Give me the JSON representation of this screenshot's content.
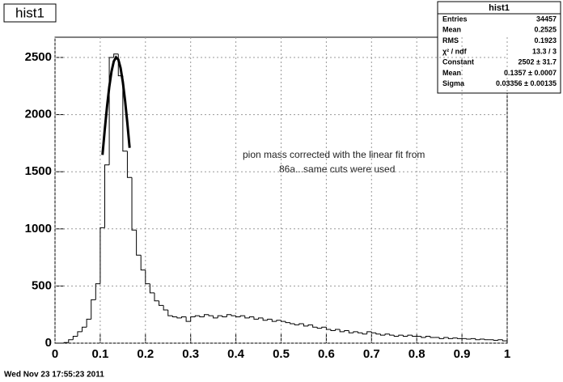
{
  "chart_data": {
    "type": "histogram",
    "title": "hist1",
    "bins": [
      0,
      0.01,
      0.02,
      0.03,
      0.04,
      0.05,
      0.06,
      0.07,
      0.08,
      0.09,
      0.1,
      0.11,
      0.12,
      0.13,
      0.14,
      0.15,
      0.16,
      0.17,
      0.18,
      0.19,
      0.2,
      0.21,
      0.22,
      0.23,
      0.24,
      0.25,
      0.26,
      0.27,
      0.28,
      0.29,
      0.3,
      0.31,
      0.32,
      0.33,
      0.34,
      0.35,
      0.36,
      0.37,
      0.38,
      0.39,
      0.4,
      0.41,
      0.42,
      0.43,
      0.44,
      0.45,
      0.46,
      0.47,
      0.48,
      0.49,
      0.5,
      0.51,
      0.52,
      0.53,
      0.54,
      0.55,
      0.56,
      0.57,
      0.58,
      0.59,
      0.6,
      0.61,
      0.62,
      0.63,
      0.64,
      0.65,
      0.66,
      0.67,
      0.68,
      0.69,
      0.7,
      0.71,
      0.72,
      0.73,
      0.74,
      0.75,
      0.76,
      0.77,
      0.78,
      0.79,
      0.8,
      0.81,
      0.82,
      0.83,
      0.84,
      0.85,
      0.86,
      0.87,
      0.88,
      0.89,
      0.9,
      0.91,
      0.92,
      0.93,
      0.94,
      0.95,
      0.96,
      0.97,
      0.98,
      0.99,
      1
    ],
    "values": [
      0,
      0,
      5,
      30,
      60,
      100,
      140,
      210,
      380,
      520,
      1010,
      1560,
      2500,
      2530,
      2340,
      1680,
      1450,
      990,
      770,
      640,
      520,
      440,
      370,
      330,
      290,
      240,
      230,
      220,
      230,
      190,
      230,
      240,
      230,
      250,
      240,
      220,
      240,
      230,
      250,
      240,
      230,
      240,
      220,
      230,
      210,
      220,
      200,
      210,
      190,
      200,
      190,
      180,
      170,
      160,
      170,
      150,
      160,
      140,
      130,
      140,
      120,
      110,
      120,
      100,
      110,
      90,
      100,
      90,
      80,
      100,
      90,
      80,
      70,
      80,
      70,
      60,
      70,
      60,
      70,
      60,
      60,
      50,
      60,
      50,
      50,
      40,
      50,
      40,
      45,
      40,
      40,
      35,
      40,
      30,
      35,
      30,
      30,
      25,
      30,
      20
    ],
    "color": "#000000",
    "fit": {
      "color": "#000000",
      "x": [
        0.105,
        0.11,
        0.115,
        0.12,
        0.125,
        0.13,
        0.135,
        0.14,
        0.145,
        0.15,
        0.155,
        0.16,
        0.165
      ],
      "values": [
        1647,
        1867,
        2069,
        2242,
        2378,
        2466,
        2501,
        2482,
        2408,
        2285,
        2121,
        1926,
        1709
      ]
    },
    "xlim": [
      0,
      1
    ],
    "ylim": [
      0,
      2677
    ],
    "xticks": [
      0,
      0.1,
      0.2,
      0.3,
      0.4,
      0.5,
      0.6,
      0.7,
      0.8,
      0.9,
      1
    ],
    "yticks": [
      0,
      500,
      1000,
      1500,
      2000,
      2500
    ],
    "grid": true,
    "stats": {
      "title": "hist1",
      "rows": [
        [
          "Entries",
          "34457"
        ],
        [
          "Mean",
          "0.2525"
        ],
        [
          "RMS",
          "0.1923"
        ],
        [
          "χ² / ndf",
          "13.3 / 3"
        ],
        [
          "Constant",
          "2502 ± 31.7"
        ],
        [
          "Mean",
          "0.1357 ± 0.0007"
        ],
        [
          "Sigma",
          "0.03356 ± 0.00135"
        ]
      ]
    },
    "annotation": [
      "pion mass corrected with the linear fit from",
      "86a...same cuts were used"
    ],
    "footer": "Wed Nov 23 17:55:23 2011"
  }
}
